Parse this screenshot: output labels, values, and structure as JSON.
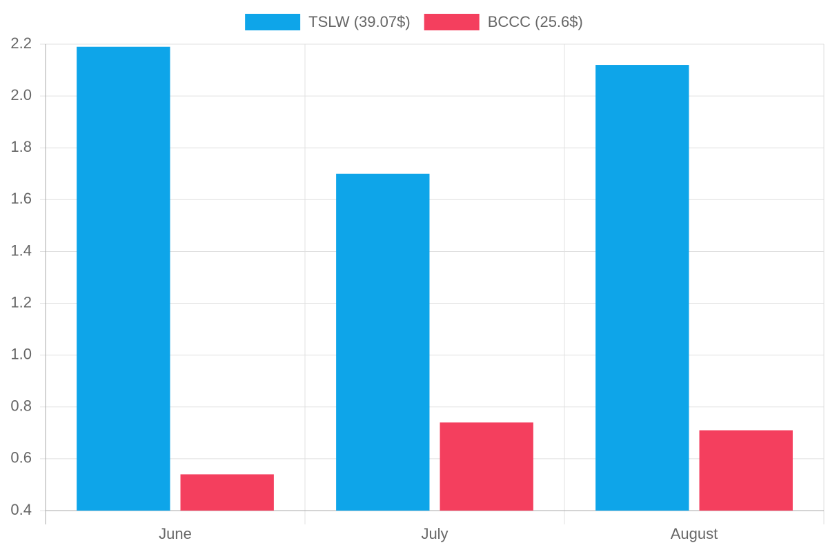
{
  "chart_data": {
    "type": "bar",
    "categories": [
      "June",
      "July",
      "August"
    ],
    "series": [
      {
        "name": "TSLW (39.07$)",
        "color": "#0ea5e9",
        "values": [
          2.19,
          1.7,
          2.12
        ]
      },
      {
        "name": "BCCC (25.6$)",
        "color": "#f43f5e",
        "values": [
          0.54,
          0.74,
          0.71
        ]
      }
    ],
    "ylim": [
      0.4,
      2.2
    ],
    "yticks": [
      {
        "value": 0.4,
        "label": "0.4"
      },
      {
        "value": 0.6,
        "label": "0.6"
      },
      {
        "value": 0.8,
        "label": "0.8"
      },
      {
        "value": 1.0,
        "label": "1.0"
      },
      {
        "value": 1.2,
        "label": "1.2"
      },
      {
        "value": 1.4,
        "label": "1.4"
      },
      {
        "value": 1.6,
        "label": "1.6"
      },
      {
        "value": 1.8,
        "label": "1.8"
      },
      {
        "value": 2.0,
        "label": "2.0"
      },
      {
        "value": 2.2,
        "label": "2.2"
      }
    ],
    "grid": true,
    "legend": "top"
  }
}
